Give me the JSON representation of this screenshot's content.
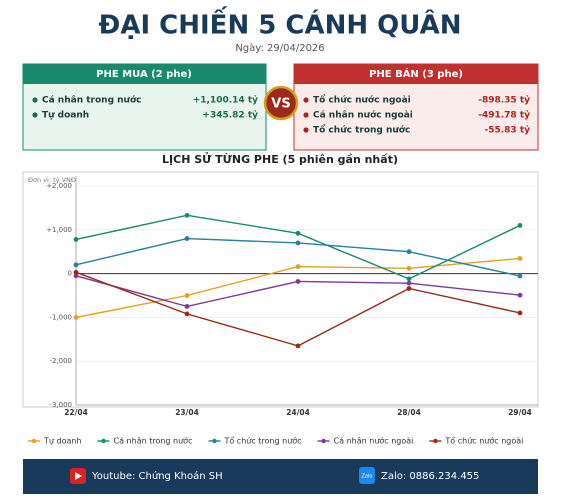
{
  "header": {
    "title": "ĐẠI CHIẾN 5 CÁNH QUÂN",
    "date": "Ngày: 29/04/2026"
  },
  "buy_panel": {
    "title": "PHE MUA  (2 phe)",
    "items": [
      {
        "label": "Cá nhân trong nước",
        "value": "+1,100.14 tỷ"
      },
      {
        "label": "Tự doanh",
        "value": "+345.82 tỷ"
      }
    ]
  },
  "vs": "VS",
  "sell_panel": {
    "title": "PHE BÁN  (3 phe)",
    "items": [
      {
        "label": "Tổ chức nước ngoài",
        "value": "-898.35 tỷ"
      },
      {
        "label": "Cá nhân nước ngoài",
        "value": "-491.78 tỷ"
      },
      {
        "label": "Tổ chức trong nước",
        "value": "-55.83 tỷ"
      }
    ]
  },
  "chart_data": {
    "type": "line",
    "title": "LỊCH SỬ TỪNG PHE (5 phiên gần nhất)",
    "unit_label": "Đơn vị: tỷ VNĐ",
    "categories": [
      "22/04",
      "23/04",
      "24/04",
      "28/04",
      "29/04"
    ],
    "series": [
      {
        "name": "Tự doanh",
        "color": "#e0a020",
        "values": [
          -1000,
          -500,
          160,
          120,
          345.82
        ]
      },
      {
        "name": "Cá nhân trong nước",
        "color": "#1a8a6e",
        "values": [
          780,
          1330,
          920,
          -120,
          1100.14
        ]
      },
      {
        "name": "Tổ chức trong nước",
        "color": "#2a7f9e",
        "values": [
          200,
          800,
          700,
          500,
          -55.83
        ]
      },
      {
        "name": "Cá nhân nước ngoài",
        "color": "#7b3a9a",
        "values": [
          -50,
          -750,
          -180,
          -220,
          -491.78
        ]
      },
      {
        "name": "Tổ chức nước ngoài",
        "color": "#9b2a1a",
        "values": [
          30,
          -920,
          -1650,
          -340,
          -898.35
        ]
      }
    ],
    "ylim": [
      -3000,
      2000
    ],
    "yticks": [
      {
        "value": -3000,
        "label": "-3,000"
      },
      {
        "value": -2000,
        "label": "-2,000"
      },
      {
        "value": -1000,
        "label": "-1,000"
      },
      0,
      {
        "value": 1000,
        "label": "+1,000"
      },
      {
        "value": 2000,
        "label": "+2,000"
      }
    ],
    "grid": true,
    "legend": "bottom"
  },
  "footer": {
    "youtube": "Youtube: Chứng Khoán SH",
    "zalo_icon": "Zalo",
    "zalo": "Zalo: 0886.234.455"
  }
}
